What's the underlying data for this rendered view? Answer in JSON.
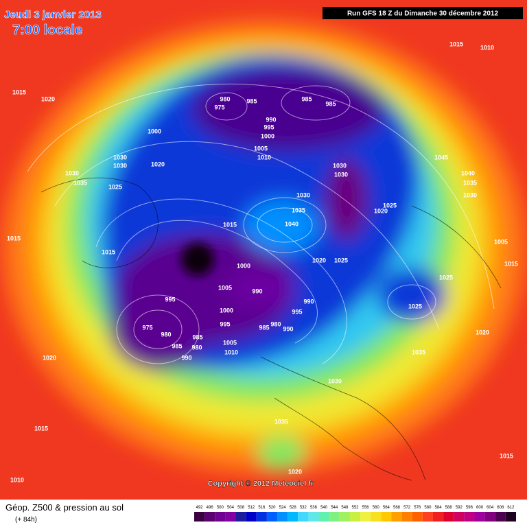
{
  "header": {
    "date": "Jeudi 3 janvier 2013",
    "time": "7:00 locale",
    "run": "Run GFS 18 Z du Dimanche 30 décembre 2012"
  },
  "copyright": "Copyright © 2012 Meteociel.fr",
  "footer": {
    "title": "Géop. Z500 & pression au sol",
    "lead": "(+ 84h)"
  },
  "scale": {
    "labels": [
      492,
      496,
      500,
      504,
      508,
      512,
      516,
      520,
      524,
      528,
      532,
      536,
      540,
      544,
      548,
      552,
      556,
      560,
      564,
      568,
      572,
      576,
      580,
      584,
      588,
      592,
      596,
      600,
      604,
      608,
      612
    ],
    "colors": [
      "#3a0040",
      "#5a0070",
      "#700090",
      "#8000a0",
      "#1c1c9c",
      "#0000c8",
      "#0030e0",
      "#0060ff",
      "#0090ff",
      "#00b8ff",
      "#40d8ff",
      "#60e8e8",
      "#60f0b0",
      "#80f080",
      "#a0f060",
      "#c8f040",
      "#f0f040",
      "#f8e020",
      "#ffc800",
      "#ffa000",
      "#ff8000",
      "#ff6000",
      "#ff4020",
      "#f02020",
      "#e00030",
      "#d00060",
      "#c00080",
      "#a000a0",
      "#800080",
      "#500050",
      "#200020"
    ]
  },
  "pressure_labels": [
    "1015",
    "1010",
    "1015",
    "1020",
    "980",
    "975",
    "985",
    "985",
    "985",
    "990",
    "995",
    "1000",
    "1000",
    "1005",
    "1010",
    "1030",
    "1030",
    "1020",
    "1045",
    "1030",
    "1035",
    "1025",
    "1030",
    "1030",
    "1040",
    "1035",
    "1030",
    "1030",
    "1025",
    "1020",
    "1035",
    "1040",
    "1015",
    "1015",
    "1015",
    "1020",
    "1025",
    "1000",
    "1005",
    "990",
    "995",
    "990",
    "1000",
    "995",
    "975",
    "980",
    "985",
    "985",
    "980",
    "990",
    "995",
    "985",
    "980",
    "990",
    "1005",
    "1010",
    "1025",
    "1025",
    "1020",
    "1035",
    "1030",
    "1015",
    "1005",
    "1020",
    "1015",
    "1035",
    "1020",
    "1010",
    "1015"
  ]
}
